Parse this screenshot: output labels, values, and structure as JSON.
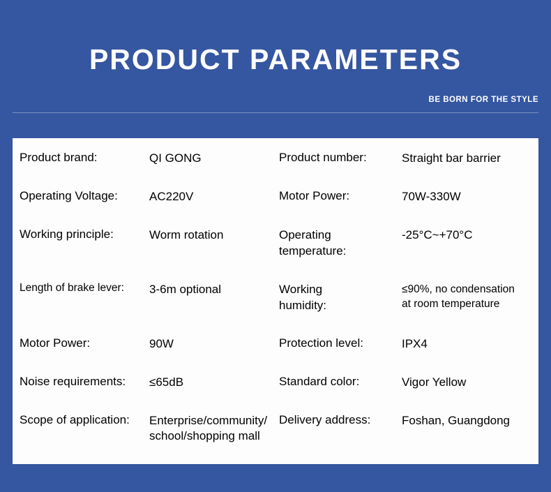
{
  "colors": {
    "background": "#3556a0",
    "panel_bg": "#fdfdfe",
    "title_color": "#ffffff",
    "subtitle_color": "#ffffff",
    "text_color": "#000000",
    "divider_color": "rgba(255,255,255,0.35)"
  },
  "header": {
    "title": "PRODUCT PARAMETERS",
    "subtitle": "BE BORN FOR THE STYLE"
  },
  "params": {
    "left": [
      {
        "label": "Product brand:",
        "value": "QI GONG"
      },
      {
        "label": "Operating Voltage:",
        "value": "AC220V"
      },
      {
        "label": "Working principle:",
        "value": "Worm rotation"
      },
      {
        "label": "Length of brake lever:",
        "value": "3-6m optional",
        "label_small": true
      },
      {
        "label": "Motor Power:",
        "value": "90W"
      },
      {
        "label": "Noise requirements:",
        "value": "≤65dB"
      },
      {
        "label": "Scope of application:",
        "value": "Enterprise/community/\nschool/shopping mall"
      }
    ],
    "right": [
      {
        "label": "Product number:",
        "value": "Straight bar barrier"
      },
      {
        "label": "Motor Power:",
        "value": "70W-330W"
      },
      {
        "label": "Operating\ntemperature:",
        "value": "-25°C~+70°C",
        "label_multiline": true
      },
      {
        "label": "Working\nhumidity:",
        "value": "≤90%, no condensation\nat room temperature",
        "label_multiline": true,
        "value_small": true
      },
      {
        "label": "Protection level:",
        "value": "IPX4"
      },
      {
        "label": "Standard color:",
        "value": "Vigor Yellow"
      },
      {
        "label": "Delivery address:",
        "value": "Foshan, Guangdong"
      }
    ]
  }
}
